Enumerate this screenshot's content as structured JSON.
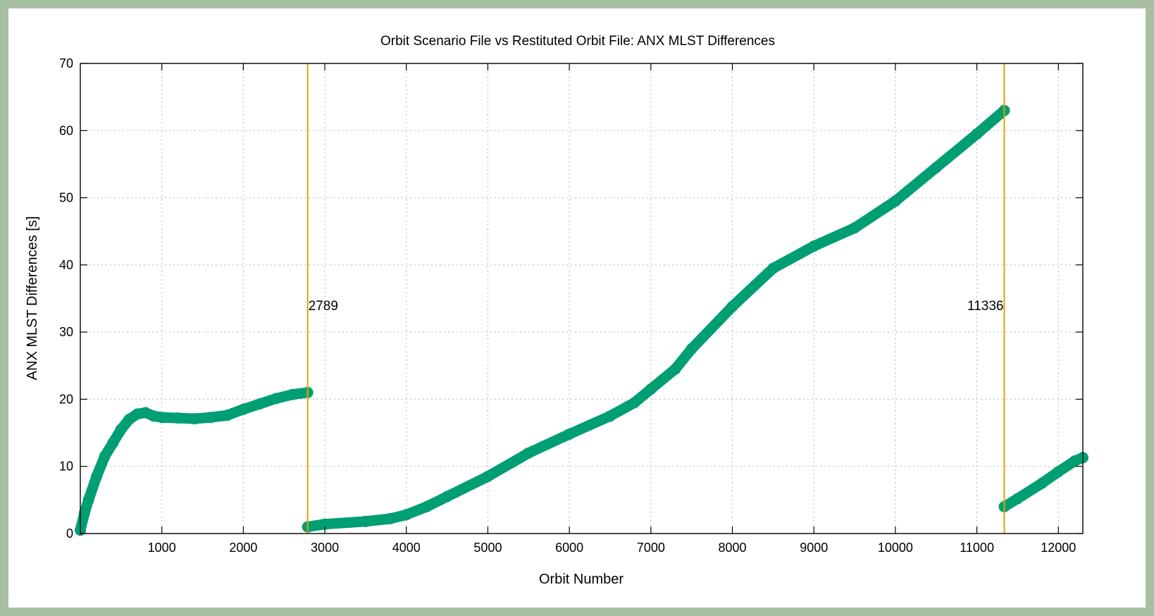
{
  "chart_data": {
    "type": "scatter",
    "title": "Orbit Scenario File vs Restituted Orbit File: ANX MLST Differences",
    "xlabel": "Orbit Number",
    "ylabel": "ANX MLST Differences [s]",
    "xlim": [
      0,
      12300
    ],
    "ylim": [
      0,
      70
    ],
    "xticks": [
      1000,
      2000,
      3000,
      4000,
      5000,
      6000,
      7000,
      8000,
      9000,
      10000,
      11000,
      12000
    ],
    "yticks": [
      0,
      10,
      20,
      30,
      40,
      50,
      60,
      70
    ],
    "grid": true,
    "colors": {
      "series": "#009e73",
      "markers": "#e5a200"
    },
    "series": [
      {
        "segments": [
          [
            [
              0,
              0.5
            ],
            [
              50,
              3
            ],
            [
              100,
              5
            ],
            [
              200,
              8.5
            ],
            [
              300,
              11.5
            ],
            [
              400,
              13.5
            ],
            [
              500,
              15.5
            ],
            [
              600,
              17
            ],
            [
              700,
              17.8
            ],
            [
              800,
              18
            ],
            [
              900,
              17.5
            ],
            [
              1000,
              17.3
            ],
            [
              1200,
              17.2
            ],
            [
              1400,
              17.1
            ],
            [
              1600,
              17.3
            ],
            [
              1800,
              17.6
            ],
            [
              2000,
              18.5
            ],
            [
              2200,
              19.3
            ],
            [
              2400,
              20.1
            ],
            [
              2600,
              20.7
            ],
            [
              2789,
              21
            ]
          ],
          [
            [
              2789,
              1
            ],
            [
              3000,
              1.4
            ],
            [
              3500,
              1.8
            ],
            [
              3800,
              2.2
            ],
            [
              4000,
              2.8
            ],
            [
              4250,
              4
            ],
            [
              4500,
              5.5
            ],
            [
              5000,
              8.5
            ],
            [
              5500,
              12
            ],
            [
              6000,
              14.8
            ],
            [
              6500,
              17.5
            ],
            [
              6800,
              19.5
            ],
            [
              7000,
              21.5
            ],
            [
              7300,
              24.5
            ],
            [
              7500,
              27.5
            ],
            [
              8000,
              33.8
            ],
            [
              8500,
              39.5
            ],
            [
              9000,
              42.8
            ],
            [
              9500,
              45.5
            ],
            [
              10000,
              49.5
            ],
            [
              10500,
              54.5
            ],
            [
              11000,
              59.5
            ],
            [
              11336,
              63
            ]
          ],
          [
            [
              11336,
              4
            ],
            [
              11500,
              5.2
            ],
            [
              11800,
              7.5
            ],
            [
              12000,
              9.2
            ],
            [
              12200,
              10.8
            ],
            [
              12300,
              11.3
            ]
          ]
        ]
      }
    ],
    "annotations": [
      {
        "x": 2789,
        "label": "2789"
      },
      {
        "x": 11336,
        "label": "11336"
      }
    ]
  }
}
